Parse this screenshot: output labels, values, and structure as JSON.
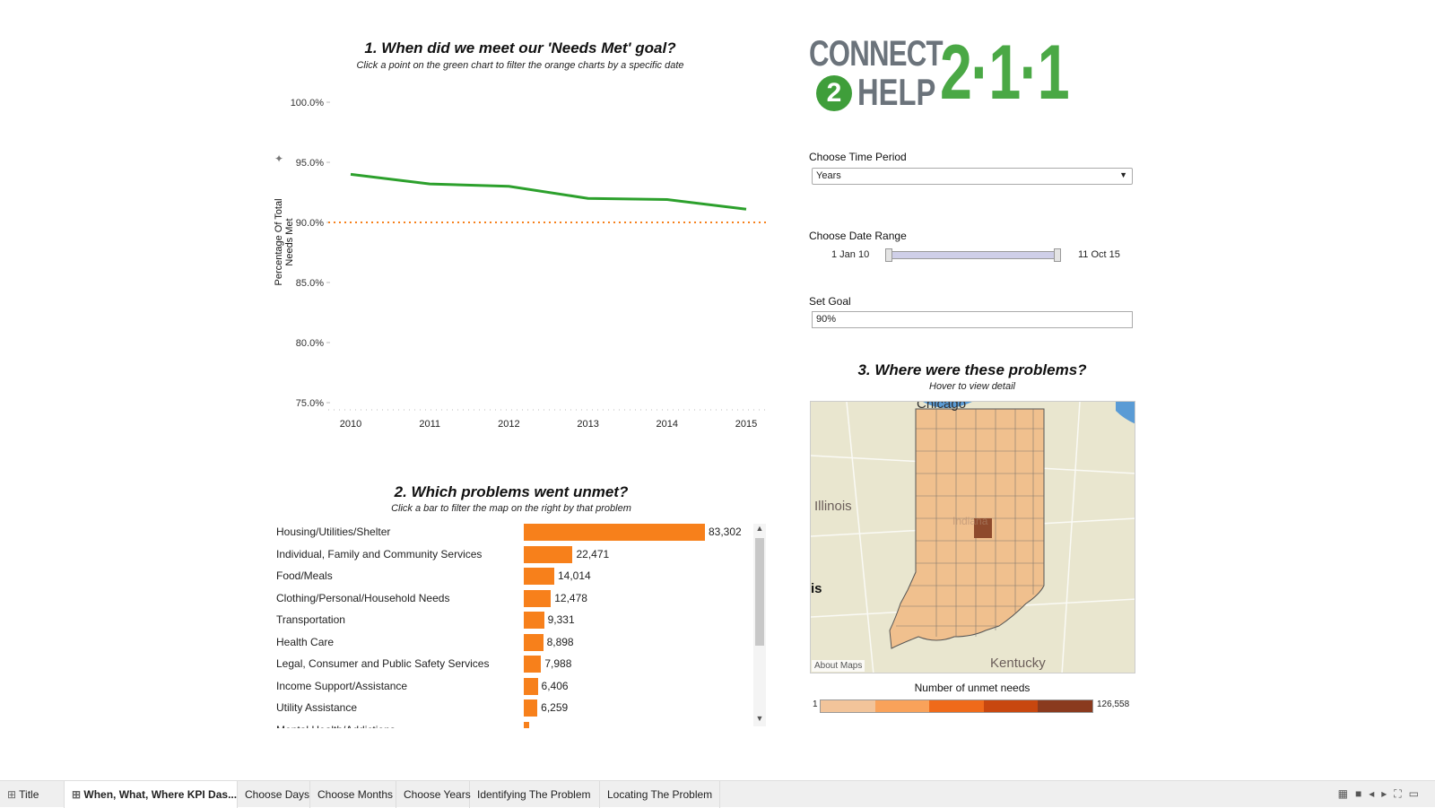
{
  "chart1": {
    "title": "1. When did we meet our 'Needs Met' goal?",
    "subtitle": "Click a point on the green chart to filter the orange charts by a specific date"
  },
  "chart_data": [
    {
      "type": "line",
      "title": "1. When did we meet our 'Needs Met' goal?",
      "ylabel": "Percentage Of Total Needs Met",
      "xlabel": "",
      "x": [
        "2010",
        "2011",
        "2012",
        "2013",
        "2014",
        "2015"
      ],
      "series": [
        {
          "name": "Percentage Of Total Needs Met",
          "values": [
            94.0,
            93.2,
            93.0,
            92.0,
            91.9,
            91.1
          ],
          "color": "#2ca02c"
        }
      ],
      "goal": 90.0,
      "goal_color": "#f7801b",
      "yticks": [
        "100.0%",
        "95.0%",
        "90.0%",
        "85.0%",
        "80.0%",
        "75.0%"
      ],
      "ylim": [
        75,
        100
      ],
      "grid": false
    },
    {
      "type": "bar",
      "title": "2. Which problems went unmet?",
      "orientation": "horizontal",
      "categories": [
        "Housing/Utilities/Shelter",
        "Individual, Family and Community Services",
        "Food/Meals",
        "Clothing/Personal/Household Needs",
        "Transportation",
        "Health Care",
        "Legal, Consumer and Public Safety Services",
        "Income Support/Assistance",
        "Utility Assistance",
        "Mental Health/Addictions"
      ],
      "values": [
        83302,
        22471,
        14014,
        12478,
        9331,
        8898,
        7988,
        6406,
        6259,
        null
      ],
      "labels": [
        "83,302",
        "22,471",
        "14,014",
        "12,478",
        "9,331",
        "8,898",
        "7,988",
        "6,406",
        "6,259",
        ""
      ],
      "color": "#f7801b"
    }
  ],
  "chart2": {
    "title": "2. Which problems went unmet?",
    "subtitle": "Click a bar to filter the map on the right by that problem"
  },
  "logo": {
    "text": "CONNECT 2 HELP 2·1·1"
  },
  "controls": {
    "time_period_label": "Choose Time Period",
    "time_period_value": "Years",
    "date_range_label": "Choose Date Range",
    "date_start": "1 Jan 10",
    "date_end": "11 Oct 15",
    "goal_label": "Set Goal",
    "goal_value": "90%"
  },
  "map": {
    "title": "3. Where were these problems?",
    "subtitle": "Hover to view detail",
    "place_labels": {
      "chicago": "Chicago",
      "illinois": "Illinois",
      "is": "is",
      "kentucky": "Kentucky",
      "indiana": "Indiana"
    },
    "about": "About Maps",
    "legend_title": "Number of unmet needs",
    "legend_min": "1",
    "legend_max": "126,558",
    "legend_colors": [
      "#f2c49a",
      "#f9a25a",
      "#ef6a1a",
      "#c8470f",
      "#8a3a1e"
    ]
  },
  "tabs": [
    {
      "label": "Title",
      "icon": "grid-icon"
    },
    {
      "label": "When, What, Where KPI Das...",
      "icon": "grid-icon",
      "active": true
    },
    {
      "label": "Choose Days"
    },
    {
      "label": "Choose Months"
    },
    {
      "label": "Choose Years"
    },
    {
      "label": "Identifying The Problem"
    },
    {
      "label": "Locating The Problem"
    }
  ]
}
